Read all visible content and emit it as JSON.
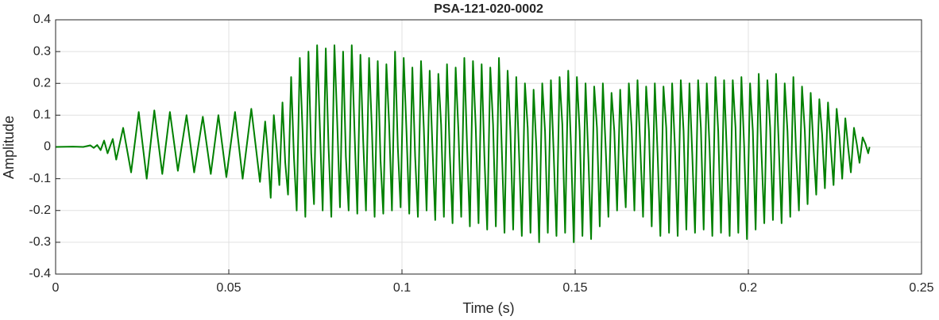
{
  "chart_data": {
    "type": "line",
    "title": "PSA-121-020-0002",
    "x_label": "Time (s)",
    "y_label": "Amplitude",
    "color": "#008000",
    "grid": true,
    "xlim": [
      0,
      0.25
    ],
    "xticks": [
      0,
      0.05,
      0.1,
      0.15,
      0.2,
      0.25
    ],
    "ylim": [
      -0.4,
      0.4
    ],
    "yticks": [
      -0.4,
      -0.3,
      -0.2,
      -0.1,
      0,
      0.1,
      0.2,
      0.3,
      0.4
    ],
    "x": [
      0,
      0.005,
      0.008,
      0.01,
      0.011,
      0.012,
      0.013,
      0.014,
      0.015,
      0.0165,
      0.0175,
      0.0195,
      0.0218,
      0.024,
      0.0263,
      0.0285,
      0.0308,
      0.033,
      0.0353,
      0.0378,
      0.04,
      0.0425,
      0.0448,
      0.047,
      0.0493,
      0.0518,
      0.054,
      0.0565,
      0.059,
      0.0605,
      0.0613,
      0.0621,
      0.063,
      0.0638,
      0.0646,
      0.0655,
      0.0663,
      0.0671,
      0.068,
      0.0688,
      0.0696,
      0.0705,
      0.0713,
      0.0721,
      0.073,
      0.0738,
      0.0746,
      0.0755,
      0.0763,
      0.0771,
      0.078,
      0.0788,
      0.0796,
      0.0805,
      0.0813,
      0.0821,
      0.083,
      0.0838,
      0.0846,
      0.0855,
      0.0863,
      0.0871,
      0.088,
      0.0888,
      0.0896,
      0.0905,
      0.0913,
      0.0921,
      0.093,
      0.0938,
      0.0946,
      0.0955,
      0.0963,
      0.0971,
      0.098,
      0.0988,
      0.0996,
      0.1005,
      0.1013,
      0.1021,
      0.103,
      0.1038,
      0.1046,
      0.1055,
      0.1063,
      0.1071,
      0.108,
      0.1088,
      0.1096,
      0.1105,
      0.1113,
      0.1121,
      0.113,
      0.1138,
      0.1146,
      0.1155,
      0.1163,
      0.1171,
      0.118,
      0.1188,
      0.1196,
      0.1205,
      0.1213,
      0.1221,
      0.123,
      0.1238,
      0.1246,
      0.1255,
      0.1263,
      0.1271,
      0.128,
      0.1288,
      0.1296,
      0.1305,
      0.1313,
      0.1321,
      0.133,
      0.1338,
      0.1346,
      0.1355,
      0.1363,
      0.1371,
      0.138,
      0.1388,
      0.1396,
      0.1405,
      0.1413,
      0.1421,
      0.143,
      0.1438,
      0.1446,
      0.1455,
      0.1463,
      0.1471,
      0.148,
      0.1488,
      0.1496,
      0.1505,
      0.1513,
      0.1521,
      0.153,
      0.1538,
      0.1546,
      0.1555,
      0.1563,
      0.1571,
      0.158,
      0.1588,
      0.1596,
      0.1605,
      0.1613,
      0.1621,
      0.163,
      0.1638,
      0.1646,
      0.1655,
      0.1663,
      0.1671,
      0.168,
      0.1688,
      0.1696,
      0.1705,
      0.1713,
      0.1721,
      0.173,
      0.1738,
      0.1746,
      0.1755,
      0.1763,
      0.1771,
      0.178,
      0.1788,
      0.1796,
      0.1805,
      0.1813,
      0.1821,
      0.183,
      0.1838,
      0.1846,
      0.1855,
      0.1863,
      0.1871,
      0.188,
      0.1888,
      0.1896,
      0.1905,
      0.1913,
      0.1921,
      0.193,
      0.1938,
      0.1946,
      0.1955,
      0.1963,
      0.1971,
      0.198,
      0.1988,
      0.1996,
      0.2005,
      0.2013,
      0.2021,
      0.203,
      0.2038,
      0.2046,
      0.2055,
      0.2063,
      0.2071,
      0.208,
      0.2088,
      0.2096,
      0.2105,
      0.2113,
      0.2121,
      0.213,
      0.2138,
      0.2146,
      0.2155,
      0.2163,
      0.2171,
      0.218,
      0.2188,
      0.2196,
      0.2205,
      0.2213,
      0.2221,
      0.223,
      0.2238,
      0.2246,
      0.2255,
      0.2263,
      0.2271,
      0.228,
      0.2288,
      0.2296,
      0.2305,
      0.2313,
      0.2321,
      0.233,
      0.2338,
      0.2346,
      0.235
    ],
    "values": [
      0,
      0.001,
      0,
      0.005,
      -0.003,
      0.006,
      -0.01,
      0.02,
      -0.02,
      0.025,
      -0.04,
      0.06,
      -0.08,
      0.11,
      -0.1,
      0.115,
      -0.085,
      0.11,
      -0.075,
      0.1,
      -0.08,
      0.095,
      -0.085,
      0.1,
      -0.095,
      0.11,
      -0.1,
      0.12,
      -0.11,
      0.08,
      -0.02,
      -0.16,
      0.1,
      0,
      -0.12,
      0.14,
      -0.05,
      -0.15,
      0.22,
      -0.03,
      -0.2,
      0.28,
      0.05,
      -0.22,
      0.3,
      -0.02,
      -0.18,
      0.32,
      0.06,
      -0.2,
      0.31,
      0,
      -0.22,
      0.32,
      0.08,
      -0.19,
      0.3,
      -0.03,
      -0.2,
      0.32,
      0.05,
      -0.21,
      0.29,
      0.02,
      -0.2,
      0.28,
      0.06,
      -0.22,
      0.27,
      -0.04,
      -0.21,
      0.26,
      0.07,
      -0.2,
      0.3,
      0,
      -0.19,
      0.28,
      0.05,
      -0.21,
      0.25,
      -0.03,
      -0.22,
      0.27,
      0.06,
      -0.2,
      0.24,
      0,
      -0.23,
      0.23,
      0.07,
      -0.22,
      0.26,
      -0.02,
      -0.24,
      0.25,
      0.05,
      -0.22,
      0.28,
      0,
      -0.25,
      0.27,
      0.06,
      -0.24,
      0.26,
      -0.03,
      -0.26,
      0.25,
      0.07,
      -0.25,
      0.28,
      0,
      -0.27,
      0.24,
      0.05,
      -0.26,
      0.22,
      -0.02,
      -0.28,
      0.2,
      0.06,
      -0.27,
      0.18,
      0,
      -0.3,
      0.2,
      0.05,
      -0.27,
      0.21,
      -0.02,
      -0.28,
      0.22,
      0.07,
      -0.27,
      0.24,
      0,
      -0.3,
      0.22,
      0.05,
      -0.28,
      0.2,
      -0.03,
      -0.29,
      0.19,
      0.06,
      -0.25,
      0.2,
      0,
      -0.22,
      0.17,
      0.05,
      -0.2,
      0.18,
      -0.02,
      -0.19,
      0.2,
      0.06,
      -0.2,
      0.21,
      0,
      -0.22,
      0.19,
      0.05,
      -0.25,
      0.2,
      -0.02,
      -0.28,
      0.19,
      0.06,
      -0.27,
      0.2,
      0,
      -0.28,
      0.21,
      0.05,
      -0.26,
      0.2,
      -0.02,
      -0.27,
      0.21,
      0.06,
      -0.26,
      0.2,
      0,
      -0.28,
      0.22,
      0.05,
      -0.27,
      0.21,
      -0.02,
      -0.28,
      0.21,
      0.06,
      -0.27,
      0.22,
      0,
      -0.29,
      0.2,
      0.05,
      -0.26,
      0.23,
      -0.02,
      -0.24,
      0.21,
      0.06,
      -0.23,
      0.23,
      0,
      -0.24,
      0.2,
      0.05,
      -0.22,
      0.22,
      -0.02,
      -0.2,
      0.19,
      0.05,
      -0.18,
      0.17,
      0,
      -0.15,
      0.15,
      0.04,
      -0.13,
      0.14,
      0,
      -0.12,
      0.12,
      0.03,
      -0.1,
      0.09,
      0,
      -0.08,
      0.06,
      0.01,
      -0.05,
      0.03,
      0.01,
      -0.02,
      0
    ]
  }
}
